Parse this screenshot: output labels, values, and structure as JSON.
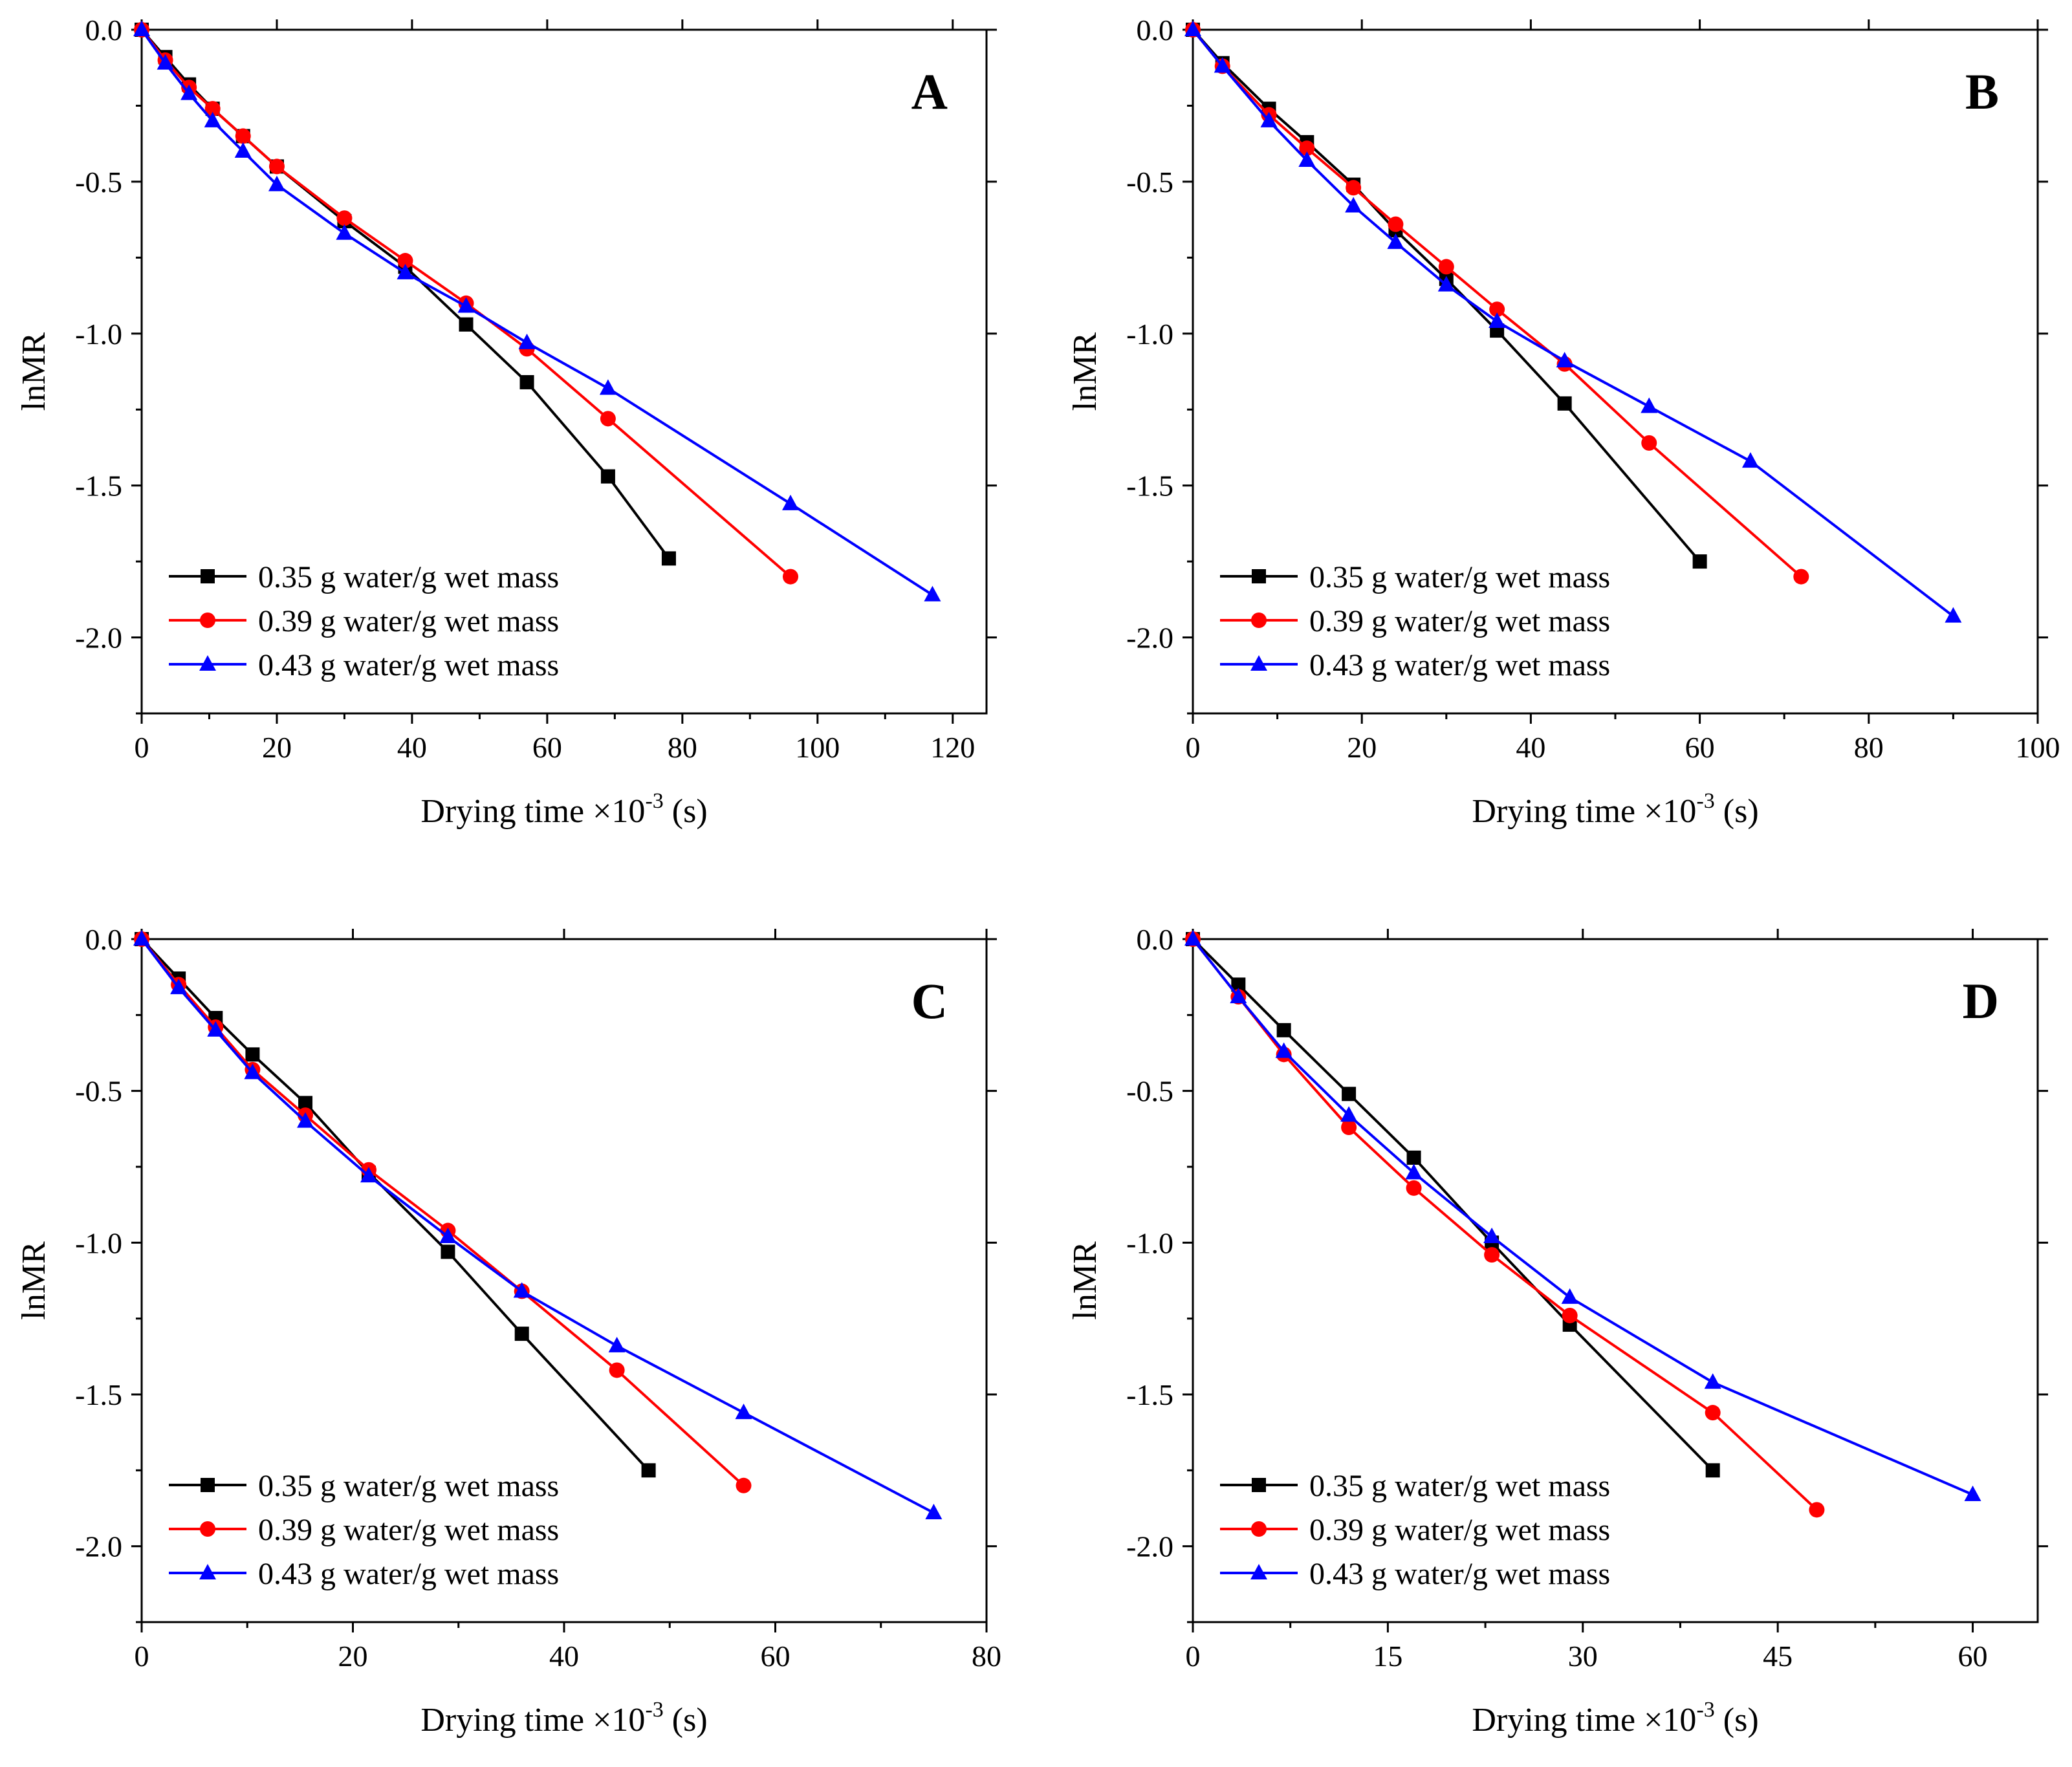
{
  "legend_labels": [
    "0.35 g water/g wet mass",
    "0.39 g water/g wet mass",
    "0.43 g water/g wet mass"
  ],
  "colors": {
    "s035": "#000000",
    "s039": "#ff0000",
    "s043": "#0000ff",
    "axis": "#000000"
  },
  "markers": [
    "square",
    "circle",
    "triangle"
  ],
  "chart_data": [
    {
      "id": "A",
      "type": "line",
      "panel_label": "A",
      "xlabel": "Drying time ×10",
      "xlabel_exp": "-3",
      "xlabel_unit": " (s)",
      "ylabel": "lnMR",
      "xlim": [
        0,
        125
      ],
      "ylim": [
        -2.25,
        0
      ],
      "xticks": [
        0,
        20,
        40,
        60,
        80,
        100,
        120
      ],
      "xtick_labels": [
        "0",
        "20",
        "40",
        "60",
        "80",
        "100",
        "120"
      ],
      "yticks": [
        0,
        -0.5,
        -1,
        -1.5,
        -2
      ],
      "ytick_labels": [
        "0.0",
        "-0.5",
        "-1.0",
        "-1.5",
        "-2.0"
      ],
      "legend_position": "bottom-left",
      "series": [
        {
          "name": "0.35 g water/g wet mass",
          "x": [
            0,
            3.5,
            7,
            10.5,
            15,
            20,
            30,
            39,
            48,
            57,
            69,
            78
          ],
          "y": [
            0,
            -0.09,
            -0.18,
            -0.26,
            -0.35,
            -0.45,
            -0.63,
            -0.78,
            -0.97,
            -1.16,
            -1.47,
            -1.74
          ]
        },
        {
          "name": "0.39 g water/g wet mass",
          "x": [
            0,
            3.5,
            7,
            10.5,
            15,
            20,
            30,
            39,
            48,
            57,
            69,
            96
          ],
          "y": [
            0,
            -0.1,
            -0.19,
            -0.26,
            -0.35,
            -0.45,
            -0.62,
            -0.76,
            -0.9,
            -1.05,
            -1.28,
            -1.8
          ]
        },
        {
          "name": "0.43 g water/g wet mass",
          "x": [
            0,
            3.5,
            7,
            10.5,
            15,
            20,
            30,
            39,
            48,
            57,
            69,
            96,
            117
          ],
          "y": [
            0,
            -0.11,
            -0.21,
            -0.3,
            -0.4,
            -0.51,
            -0.67,
            -0.8,
            -0.91,
            -1.03,
            -1.18,
            -1.56,
            -1.86
          ]
        }
      ]
    },
    {
      "id": "B",
      "type": "line",
      "panel_label": "B",
      "xlabel": "Drying time ×10",
      "xlabel_exp": "-3",
      "xlabel_unit": " (s)",
      "ylabel": "lnMR",
      "xlim": [
        0,
        100
      ],
      "ylim": [
        -2.25,
        0
      ],
      "xticks": [
        0,
        20,
        40,
        60,
        80,
        100
      ],
      "xtick_labels": [
        "0",
        "20",
        "40",
        "60",
        "80",
        "100"
      ],
      "yticks": [
        0,
        -0.5,
        -1,
        -1.5,
        -2
      ],
      "ytick_labels": [
        "0.0",
        "-0.5",
        "-1.0",
        "-1.5",
        "-2.0"
      ],
      "legend_position": "bottom-left",
      "series": [
        {
          "name": "0.35 g water/g wet mass",
          "x": [
            0,
            3.5,
            9,
            13.5,
            19,
            24,
            30,
            36,
            44,
            60
          ],
          "y": [
            0,
            -0.11,
            -0.26,
            -0.37,
            -0.51,
            -0.66,
            -0.82,
            -0.99,
            -1.23,
            -1.75
          ]
        },
        {
          "name": "0.39 g water/g wet mass",
          "x": [
            0,
            3.5,
            9,
            13.5,
            19,
            24,
            30,
            36,
            44,
            54,
            72
          ],
          "y": [
            0,
            -0.12,
            -0.28,
            -0.39,
            -0.52,
            -0.64,
            -0.78,
            -0.92,
            -1.1,
            -1.36,
            -1.8
          ]
        },
        {
          "name": "0.43 g water/g wet mass",
          "x": [
            0,
            3.5,
            9,
            13.5,
            19,
            24,
            30,
            36,
            44,
            54,
            66,
            90
          ],
          "y": [
            0,
            -0.12,
            -0.3,
            -0.43,
            -0.58,
            -0.7,
            -0.84,
            -0.96,
            -1.09,
            -1.24,
            -1.42,
            -1.93
          ]
        }
      ]
    },
    {
      "id": "C",
      "type": "line",
      "panel_label": "C",
      "xlabel": "Drying time ×10",
      "xlabel_exp": "-3",
      "xlabel_unit": " (s)",
      "ylabel": "lnMR",
      "xlim": [
        0,
        80
      ],
      "ylim": [
        -2.25,
        0
      ],
      "xticks": [
        0,
        20,
        40,
        60,
        80
      ],
      "xtick_labels": [
        "0",
        "20",
        "40",
        "60",
        "80"
      ],
      "yticks": [
        0,
        -0.5,
        -1,
        -1.5,
        -2
      ],
      "ytick_labels": [
        "0.0",
        "-0.5",
        "-1.0",
        "-1.5",
        "-2.0"
      ],
      "legend_position": "bottom-left",
      "series": [
        {
          "name": "0.35 g water/g wet mass",
          "x": [
            0,
            3.5,
            7,
            10.5,
            15.5,
            21.5,
            29,
            36,
            48
          ],
          "y": [
            0,
            -0.13,
            -0.26,
            -0.38,
            -0.54,
            -0.77,
            -1.03,
            -1.3,
            -1.75
          ]
        },
        {
          "name": "0.39 g water/g wet mass",
          "x": [
            0,
            3.5,
            7,
            10.5,
            15.5,
            21.5,
            29,
            36,
            45,
            57
          ],
          "y": [
            0,
            -0.15,
            -0.29,
            -0.43,
            -0.58,
            -0.76,
            -0.96,
            -1.16,
            -1.42,
            -1.8
          ]
        },
        {
          "name": "0.43 g water/g wet mass",
          "x": [
            0,
            3.5,
            7,
            10.5,
            15.5,
            21.5,
            29,
            36,
            45,
            57,
            75
          ],
          "y": [
            0,
            -0.16,
            -0.3,
            -0.44,
            -0.6,
            -0.78,
            -0.98,
            -1.16,
            -1.34,
            -1.56,
            -1.89
          ]
        }
      ]
    },
    {
      "id": "D",
      "type": "line",
      "panel_label": "D",
      "xlabel": "Drying time ×10",
      "xlabel_exp": "-3",
      "xlabel_unit": " (s)",
      "ylabel": "lnMR",
      "xlim": [
        0,
        65
      ],
      "ylim": [
        -2.25,
        0
      ],
      "xticks": [
        0,
        15,
        30,
        45,
        60
      ],
      "xtick_labels": [
        "0",
        "15",
        "30",
        "45",
        "60"
      ],
      "yticks": [
        0,
        -0.5,
        -1,
        -1.5,
        -2
      ],
      "ytick_labels": [
        "0.0",
        "-0.5",
        "-1.0",
        "-1.5",
        "-2.0"
      ],
      "legend_position": "bottom-left",
      "series": [
        {
          "name": "0.35 g water/g wet mass",
          "x": [
            0,
            3.5,
            7,
            12,
            17,
            23,
            29,
            40
          ],
          "y": [
            0,
            -0.15,
            -0.3,
            -0.51,
            -0.72,
            -1.0,
            -1.27,
            -1.75
          ]
        },
        {
          "name": "0.39 g water/g wet mass",
          "x": [
            0,
            3.5,
            7,
            12,
            17,
            23,
            29,
            40,
            48
          ],
          "y": [
            0,
            -0.19,
            -0.38,
            -0.62,
            -0.82,
            -1.04,
            -1.24,
            -1.56,
            -1.88
          ]
        },
        {
          "name": "0.43 g water/g wet mass",
          "x": [
            0,
            3.5,
            7,
            12,
            17,
            23,
            29,
            40,
            60
          ],
          "y": [
            0,
            -0.19,
            -0.37,
            -0.58,
            -0.77,
            -0.98,
            -1.18,
            -1.46,
            -1.83
          ]
        }
      ]
    }
  ]
}
